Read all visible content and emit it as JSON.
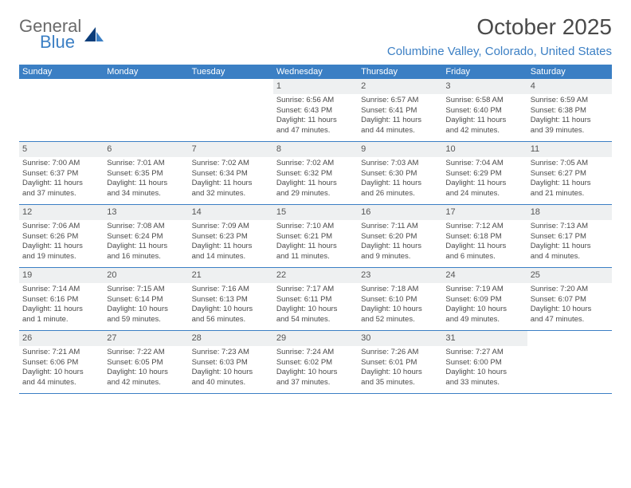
{
  "logo": {
    "text_gray": "General",
    "text_blue": "Blue"
  },
  "header": {
    "month_title": "October 2025",
    "location": "Columbine Valley, Colorado, United States"
  },
  "colors": {
    "accent": "#3b7fc4",
    "header_bg": "#3b7fc4",
    "daynum_bg": "#eef0f1",
    "text": "#4a4a4a",
    "logo_gray": "#6a6a6a"
  },
  "weekdays": [
    "Sunday",
    "Monday",
    "Tuesday",
    "Wednesday",
    "Thursday",
    "Friday",
    "Saturday"
  ],
  "weeks": [
    [
      null,
      null,
      null,
      {
        "n": "1",
        "sr": "Sunrise: 6:56 AM",
        "ss": "Sunset: 6:43 PM",
        "d1": "Daylight: 11 hours",
        "d2": "and 47 minutes."
      },
      {
        "n": "2",
        "sr": "Sunrise: 6:57 AM",
        "ss": "Sunset: 6:41 PM",
        "d1": "Daylight: 11 hours",
        "d2": "and 44 minutes."
      },
      {
        "n": "3",
        "sr": "Sunrise: 6:58 AM",
        "ss": "Sunset: 6:40 PM",
        "d1": "Daylight: 11 hours",
        "d2": "and 42 minutes."
      },
      {
        "n": "4",
        "sr": "Sunrise: 6:59 AM",
        "ss": "Sunset: 6:38 PM",
        "d1": "Daylight: 11 hours",
        "d2": "and 39 minutes."
      }
    ],
    [
      {
        "n": "5",
        "sr": "Sunrise: 7:00 AM",
        "ss": "Sunset: 6:37 PM",
        "d1": "Daylight: 11 hours",
        "d2": "and 37 minutes."
      },
      {
        "n": "6",
        "sr": "Sunrise: 7:01 AM",
        "ss": "Sunset: 6:35 PM",
        "d1": "Daylight: 11 hours",
        "d2": "and 34 minutes."
      },
      {
        "n": "7",
        "sr": "Sunrise: 7:02 AM",
        "ss": "Sunset: 6:34 PM",
        "d1": "Daylight: 11 hours",
        "d2": "and 32 minutes."
      },
      {
        "n": "8",
        "sr": "Sunrise: 7:02 AM",
        "ss": "Sunset: 6:32 PM",
        "d1": "Daylight: 11 hours",
        "d2": "and 29 minutes."
      },
      {
        "n": "9",
        "sr": "Sunrise: 7:03 AM",
        "ss": "Sunset: 6:30 PM",
        "d1": "Daylight: 11 hours",
        "d2": "and 26 minutes."
      },
      {
        "n": "10",
        "sr": "Sunrise: 7:04 AM",
        "ss": "Sunset: 6:29 PM",
        "d1": "Daylight: 11 hours",
        "d2": "and 24 minutes."
      },
      {
        "n": "11",
        "sr": "Sunrise: 7:05 AM",
        "ss": "Sunset: 6:27 PM",
        "d1": "Daylight: 11 hours",
        "d2": "and 21 minutes."
      }
    ],
    [
      {
        "n": "12",
        "sr": "Sunrise: 7:06 AM",
        "ss": "Sunset: 6:26 PM",
        "d1": "Daylight: 11 hours",
        "d2": "and 19 minutes."
      },
      {
        "n": "13",
        "sr": "Sunrise: 7:08 AM",
        "ss": "Sunset: 6:24 PM",
        "d1": "Daylight: 11 hours",
        "d2": "and 16 minutes."
      },
      {
        "n": "14",
        "sr": "Sunrise: 7:09 AM",
        "ss": "Sunset: 6:23 PM",
        "d1": "Daylight: 11 hours",
        "d2": "and 14 minutes."
      },
      {
        "n": "15",
        "sr": "Sunrise: 7:10 AM",
        "ss": "Sunset: 6:21 PM",
        "d1": "Daylight: 11 hours",
        "d2": "and 11 minutes."
      },
      {
        "n": "16",
        "sr": "Sunrise: 7:11 AM",
        "ss": "Sunset: 6:20 PM",
        "d1": "Daylight: 11 hours",
        "d2": "and 9 minutes."
      },
      {
        "n": "17",
        "sr": "Sunrise: 7:12 AM",
        "ss": "Sunset: 6:18 PM",
        "d1": "Daylight: 11 hours",
        "d2": "and 6 minutes."
      },
      {
        "n": "18",
        "sr": "Sunrise: 7:13 AM",
        "ss": "Sunset: 6:17 PM",
        "d1": "Daylight: 11 hours",
        "d2": "and 4 minutes."
      }
    ],
    [
      {
        "n": "19",
        "sr": "Sunrise: 7:14 AM",
        "ss": "Sunset: 6:16 PM",
        "d1": "Daylight: 11 hours",
        "d2": "and 1 minute."
      },
      {
        "n": "20",
        "sr": "Sunrise: 7:15 AM",
        "ss": "Sunset: 6:14 PM",
        "d1": "Daylight: 10 hours",
        "d2": "and 59 minutes."
      },
      {
        "n": "21",
        "sr": "Sunrise: 7:16 AM",
        "ss": "Sunset: 6:13 PM",
        "d1": "Daylight: 10 hours",
        "d2": "and 56 minutes."
      },
      {
        "n": "22",
        "sr": "Sunrise: 7:17 AM",
        "ss": "Sunset: 6:11 PM",
        "d1": "Daylight: 10 hours",
        "d2": "and 54 minutes."
      },
      {
        "n": "23",
        "sr": "Sunrise: 7:18 AM",
        "ss": "Sunset: 6:10 PM",
        "d1": "Daylight: 10 hours",
        "d2": "and 52 minutes."
      },
      {
        "n": "24",
        "sr": "Sunrise: 7:19 AM",
        "ss": "Sunset: 6:09 PM",
        "d1": "Daylight: 10 hours",
        "d2": "and 49 minutes."
      },
      {
        "n": "25",
        "sr": "Sunrise: 7:20 AM",
        "ss": "Sunset: 6:07 PM",
        "d1": "Daylight: 10 hours",
        "d2": "and 47 minutes."
      }
    ],
    [
      {
        "n": "26",
        "sr": "Sunrise: 7:21 AM",
        "ss": "Sunset: 6:06 PM",
        "d1": "Daylight: 10 hours",
        "d2": "and 44 minutes."
      },
      {
        "n": "27",
        "sr": "Sunrise: 7:22 AM",
        "ss": "Sunset: 6:05 PM",
        "d1": "Daylight: 10 hours",
        "d2": "and 42 minutes."
      },
      {
        "n": "28",
        "sr": "Sunrise: 7:23 AM",
        "ss": "Sunset: 6:03 PM",
        "d1": "Daylight: 10 hours",
        "d2": "and 40 minutes."
      },
      {
        "n": "29",
        "sr": "Sunrise: 7:24 AM",
        "ss": "Sunset: 6:02 PM",
        "d1": "Daylight: 10 hours",
        "d2": "and 37 minutes."
      },
      {
        "n": "30",
        "sr": "Sunrise: 7:26 AM",
        "ss": "Sunset: 6:01 PM",
        "d1": "Daylight: 10 hours",
        "d2": "and 35 minutes."
      },
      {
        "n": "31",
        "sr": "Sunrise: 7:27 AM",
        "ss": "Sunset: 6:00 PM",
        "d1": "Daylight: 10 hours",
        "d2": "and 33 minutes."
      },
      null
    ]
  ]
}
